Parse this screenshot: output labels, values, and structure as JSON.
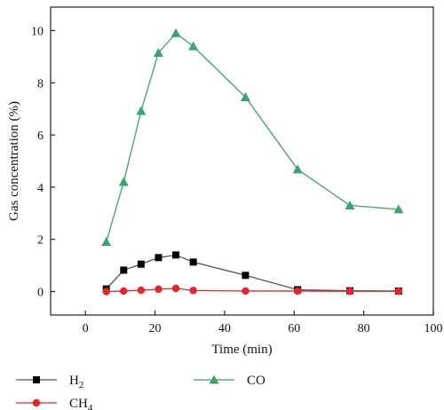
{
  "chart_data": {
    "type": "line",
    "title": "",
    "xlabel": "Time (min)",
    "ylabel": "Gas concentration (%)",
    "xlim": [
      -10,
      100
    ],
    "ylim": [
      -0.9,
      10.9
    ],
    "x_ticks": [
      0,
      20,
      40,
      60,
      80,
      100
    ],
    "y_ticks": [
      0,
      2,
      4,
      6,
      8,
      10
    ],
    "grid": false,
    "legend_position": "bottom",
    "series": [
      {
        "key": "h2",
        "name_main": "H",
        "name_sub": "2",
        "color": "#000000",
        "line_color": "#555555",
        "marker": "square",
        "x": [
          6,
          11,
          16,
          21,
          26,
          31,
          46,
          61,
          76,
          90
        ],
        "y": [
          0.1,
          0.82,
          1.05,
          1.3,
          1.4,
          1.13,
          0.62,
          0.07,
          0.03,
          0.02
        ]
      },
      {
        "key": "ch4",
        "name_main": "CH",
        "name_sub": "4",
        "color": "#e8232a",
        "line_color": "#e8232a",
        "marker": "circle",
        "x": [
          6,
          11,
          16,
          21,
          26,
          31,
          46,
          61,
          76,
          90
        ],
        "y": [
          0.0,
          0.02,
          0.05,
          0.09,
          0.12,
          0.04,
          0.02,
          0.02,
          0.01,
          0.01
        ]
      },
      {
        "key": "co",
        "name_main": "CO",
        "name_sub": "",
        "color": "#3aa56a",
        "line_color": "#3aa56a",
        "marker": "triangle",
        "x": [
          6,
          11,
          16,
          21,
          26,
          31,
          46,
          61,
          76,
          90
        ],
        "y": [
          1.9,
          4.2,
          6.92,
          9.15,
          9.9,
          9.4,
          7.45,
          4.68,
          3.3,
          3.15
        ]
      }
    ]
  }
}
